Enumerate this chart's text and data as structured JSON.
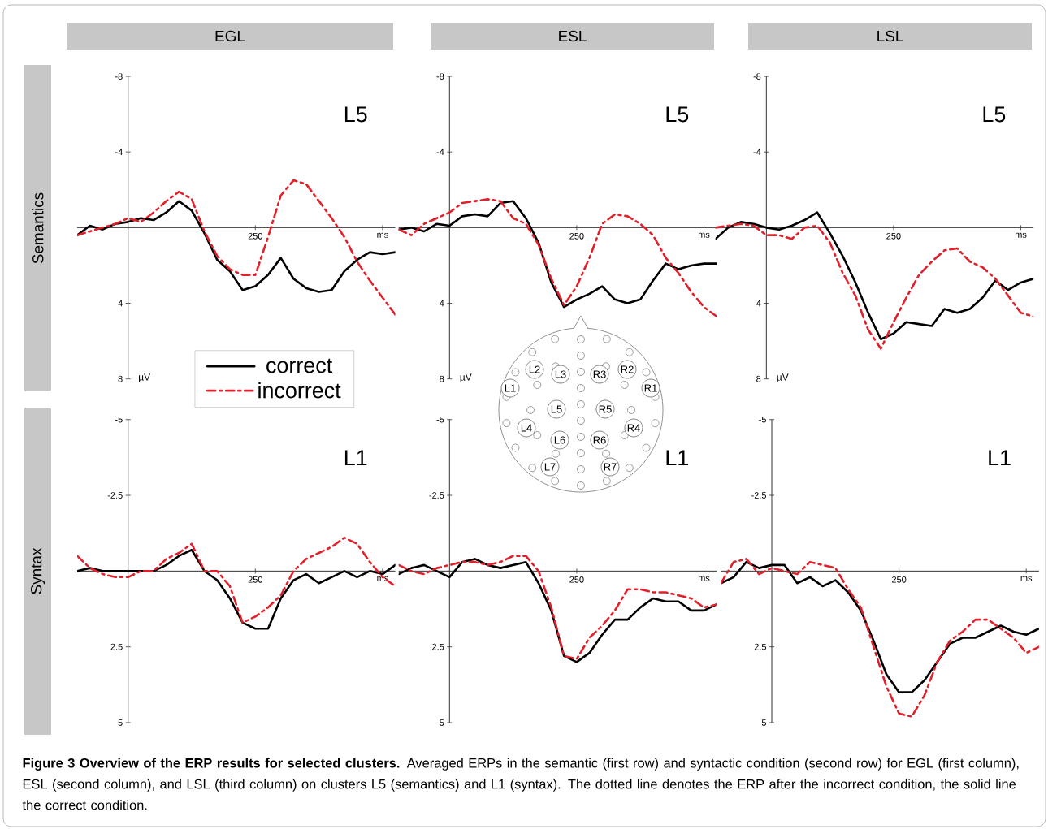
{
  "chart_data": [
    {
      "type": "line",
      "title": "L5",
      "subtitle": "EGL",
      "ylabel": "µV",
      "annotations": [
        "Semantics"
      ],
      "legend": "bottom",
      "categories": [
        null,
        null,
        null,
        null,
        null,
        null,
        null,
        null,
        null,
        null,
        null,
        null,
        null,
        null,
        "250",
        null,
        null,
        null,
        null,
        null,
        null,
        null,
        null,
        null,
        "ms",
        null
      ],
      "ylim": [
        8,
        -8
      ],
      "yticks": [
        -8,
        -4,
        4,
        8
      ],
      "series": [
        {
          "name": "correct",
          "color": "#000000",
          "line_style": "solid",
          "values": [
            0.4,
            -0.1,
            0.1,
            -0.2,
            -0.3,
            -0.5,
            -0.4,
            -0.8,
            -1.4,
            -0.9,
            0.3,
            1.7,
            2.3,
            3.3,
            3.1,
            2.5,
            1.6,
            2.7,
            3.2,
            3.4,
            3.3,
            2.3,
            1.7,
            1.3,
            1.4,
            1.3
          ]
        },
        {
          "name": "incorrect",
          "color": "#e0202a",
          "line_style": "dashed",
          "values": [
            0.4,
            0.2,
            0,
            -0.2,
            -0.5,
            -0.3,
            -0.8,
            -1.4,
            -1.9,
            -1.5,
            0.2,
            1.5,
            2.2,
            2.5,
            2.5,
            0.5,
            -1.7,
            -2.5,
            -2.3,
            -1.4,
            -0.5,
            0.5,
            1.8,
            2.8,
            3.7,
            4.6
          ]
        }
      ]
    },
    {
      "type": "line",
      "title": "L5",
      "subtitle": "ESL",
      "ylabel": "µV",
      "categories": [
        null,
        null,
        null,
        null,
        null,
        null,
        null,
        null,
        null,
        null,
        null,
        null,
        null,
        null,
        "250",
        null,
        null,
        null,
        null,
        null,
        null,
        null,
        null,
        null,
        "ms",
        null
      ],
      "ylim": [
        8,
        -8
      ],
      "yticks": [
        -8,
        -4,
        4,
        8
      ],
      "series": [
        {
          "color": "#000000",
          "line_style": "solid",
          "values": [
            0.1,
            0,
            0.2,
            -0.2,
            -0.1,
            -0.6,
            -0.7,
            -0.6,
            -1.3,
            -1.4,
            -0.5,
            0.8,
            2.9,
            4.2,
            3.8,
            3.5,
            3.1,
            3.8,
            4.0,
            3.8,
            2.8,
            1.9,
            2.2,
            2.0,
            1.9,
            1.9
          ]
        },
        {
          "color": "#e0202a",
          "line_style": "dashed",
          "values": [
            0.1,
            0.4,
            -0.2,
            -0.5,
            -0.8,
            -1.3,
            -1.4,
            -1.5,
            -1.4,
            -0.5,
            -0.2,
            0.9,
            2.7,
            4.1,
            3.1,
            1.6,
            -0.2,
            -0.7,
            -0.6,
            -0.2,
            0.4,
            1.6,
            2.4,
            3.4,
            4.2,
            4.7
          ]
        }
      ]
    },
    {
      "type": "line",
      "title": "L5",
      "subtitle": "LSL",
      "ylabel": "µV",
      "categories": [
        null,
        null,
        null,
        null,
        null,
        null,
        null,
        null,
        null,
        null,
        null,
        null,
        null,
        null,
        "250",
        null,
        null,
        null,
        null,
        null,
        null,
        null,
        null,
        null,
        "ms",
        null
      ],
      "ylim": [
        8,
        -8
      ],
      "yticks": [
        -8,
        -4,
        4,
        8
      ],
      "series": [
        {
          "color": "#000000",
          "line_style": "solid",
          "values": [
            0.6,
            0,
            -0.3,
            -0.2,
            0,
            0.1,
            -0.1,
            -0.4,
            -0.8,
            0.3,
            1.5,
            2.9,
            4.5,
            5.9,
            5.6,
            5.0,
            5.1,
            5.2,
            4.3,
            4.5,
            4.3,
            3.7,
            2.8,
            3.3,
            2.9,
            2.7
          ]
        },
        {
          "color": "#e0202a",
          "line_style": "dashed",
          "values": [
            0,
            -0.1,
            -0.2,
            -0.1,
            0.4,
            0.4,
            0.6,
            0,
            -0.1,
            0.8,
            2.4,
            3.6,
            5.4,
            6.4,
            5.0,
            3.7,
            2.5,
            1.8,
            1.2,
            1.1,
            1.8,
            2.1,
            2.7,
            3.6,
            4.5,
            4.7
          ]
        }
      ]
    },
    {
      "type": "line",
      "title": "L1",
      "annotations": [
        "Syntax"
      ],
      "categories": [
        null,
        null,
        null,
        null,
        null,
        null,
        null,
        null,
        null,
        null,
        null,
        null,
        null,
        null,
        "250",
        null,
        null,
        null,
        null,
        null,
        null,
        null,
        null,
        null,
        "ms",
        null
      ],
      "ylim": [
        5,
        -5
      ],
      "yticks": [
        -5,
        -2.5,
        2.5,
        5
      ],
      "series": [
        {
          "color": "#000000",
          "line_style": "solid",
          "values": [
            0,
            -0.1,
            0,
            0,
            0,
            0,
            0,
            -0.2,
            -0.5,
            -0.7,
            0,
            0.3,
            0.9,
            1.7,
            1.9,
            1.9,
            0.9,
            0.3,
            0.1,
            0.4,
            0.2,
            0,
            0.2,
            0,
            0.1,
            -0.2
          ]
        },
        {
          "color": "#e0202a",
          "line_style": "dashed",
          "values": [
            -0.5,
            -0.1,
            0.1,
            0.2,
            0.2,
            0,
            0,
            -0.4,
            -0.6,
            -0.9,
            0,
            0,
            0.5,
            1.7,
            1.5,
            1.2,
            0.8,
            0,
            -0.4,
            -0.6,
            -0.8,
            -1.1,
            -0.9,
            -0.3,
            0.2,
            0.5
          ]
        }
      ]
    },
    {
      "type": "line",
      "title": "L1",
      "categories": [
        null,
        null,
        null,
        null,
        null,
        null,
        null,
        null,
        null,
        null,
        null,
        null,
        null,
        null,
        "250",
        null,
        null,
        null,
        null,
        null,
        null,
        null,
        null,
        null,
        "ms",
        null
      ],
      "ylim": [
        5,
        -5
      ],
      "yticks": [
        -5,
        -2.5,
        2.5,
        5
      ],
      "series": [
        {
          "color": "#000000",
          "line_style": "solid",
          "values": [
            0.1,
            -0.1,
            -0.2,
            0,
            0.2,
            -0.3,
            -0.4,
            -0.2,
            -0.1,
            -0.2,
            -0.3,
            0.4,
            1.3,
            2.8,
            3.0,
            2.7,
            2.1,
            1.6,
            1.6,
            1.2,
            0.9,
            1.0,
            1.0,
            1.3,
            1.3,
            1.1
          ]
        },
        {
          "color": "#e0202a",
          "line_style": "dashed",
          "values": [
            -0.2,
            0,
            0.1,
            -0.1,
            -0.2,
            -0.3,
            -0.3,
            -0.2,
            -0.3,
            -0.5,
            -0.5,
            0,
            1.2,
            2.8,
            2.9,
            2.2,
            1.8,
            1.3,
            0.6,
            0.6,
            0.7,
            0.7,
            0.8,
            0.9,
            1.2,
            1.1
          ]
        }
      ]
    },
    {
      "type": "line",
      "title": "L1",
      "categories": [
        null,
        null,
        null,
        null,
        null,
        null,
        null,
        null,
        null,
        null,
        null,
        null,
        null,
        null,
        "250",
        null,
        null,
        null,
        null,
        null,
        null,
        null,
        null,
        null,
        "ms",
        null
      ],
      "ylim": [
        5,
        -5
      ],
      "yticks": [
        -5,
        -2.5,
        2.5,
        5
      ],
      "series": [
        {
          "color": "#000000",
          "line_style": "solid",
          "values": [
            0.4,
            0.2,
            -0.3,
            -0.1,
            -0.2,
            -0.2,
            0.4,
            0.2,
            0.5,
            0.3,
            0.7,
            1.3,
            2.3,
            3.4,
            4.0,
            4.0,
            3.6,
            3.0,
            2.4,
            2.2,
            2.2,
            2.0,
            1.8,
            2.0,
            2.1,
            1.9
          ]
        },
        {
          "color": "#e0202a",
          "line_style": "dashed",
          "values": [
            0.4,
            -0.3,
            -0.4,
            0.1,
            -0.1,
            0,
            0.1,
            -0.3,
            -0.2,
            -0.1,
            0.6,
            1.2,
            2.5,
            3.8,
            4.7,
            4.8,
            4.1,
            3.0,
            2.3,
            2.0,
            1.6,
            1.6,
            1.9,
            2.2,
            2.7,
            2.5
          ]
        }
      ]
    },
    {
      "type": "other",
      "annotations": [
        "L1",
        "L2",
        "L3",
        "R3",
        "R2",
        "R1",
        "L5",
        "R5",
        "L4",
        "R4",
        "L6",
        "R6",
        "L7",
        "R7",
        "**Figure 3 Overview of the ERP results for selected clusters.** Averaged ERPs in the semantic (first row) and syntactic condition (second row) for EGL (first column), ESL (second column), and LSL (third column) on clusters L5 (semantics) and L1 (syntax). The dotted line denotes the ERP after the incorrect condition, the solid line the correct condition."
      ]
    }
  ]
}
